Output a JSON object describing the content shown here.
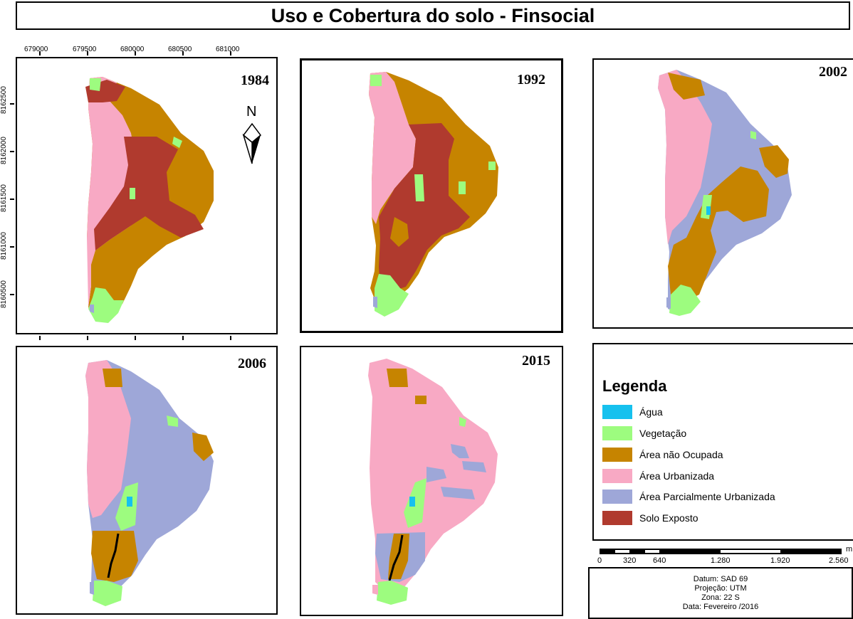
{
  "title": "Uso e Cobertura do solo - Finsocial",
  "colors": {
    "agua": "#16c1ee",
    "vegetacao": "#9dfc7f",
    "nao_ocupada": "#c68400",
    "urbanizada": "#f8a9c4",
    "parcial": "#9ea7d8",
    "solo_exposto": "#b03a2e"
  },
  "panels": [
    {
      "year": "1984"
    },
    {
      "year": "1992"
    },
    {
      "year": "2002"
    },
    {
      "year": "2006"
    },
    {
      "year": "2015"
    }
  ],
  "coordinates": {
    "x_ticks": [
      "679000",
      "679500",
      "680000",
      "680500",
      "681000"
    ],
    "y_ticks": [
      "8162500",
      "8162000",
      "8161500",
      "8161000",
      "8160500"
    ]
  },
  "north_arrow": {
    "label": "N",
    "icon": "north-arrow-icon"
  },
  "legend": {
    "title": "Legenda",
    "items": [
      {
        "label": "Água",
        "color": "#16c1ee"
      },
      {
        "label": "Vegetação",
        "color": "#9dfc7f"
      },
      {
        "label": "Área não Ocupada",
        "color": "#c68400"
      },
      {
        "label": "Área Urbanizada",
        "color": "#f8a9c4"
      },
      {
        "label": "Área Parcialmente Urbanizada",
        "color": "#9ea7d8"
      },
      {
        "label": "Solo Exposto",
        "color": "#b03a2e"
      }
    ]
  },
  "scale_bar": {
    "labels": [
      "0",
      "320",
      "640",
      "1.280",
      "1.920",
      "2.560"
    ],
    "unit": "m"
  },
  "info": {
    "datum": "Datum: SAD 69",
    "projection": "Projeção: UTM",
    "zone": "Zona: 22 S",
    "date": "Data: Fevereiro /2016"
  }
}
